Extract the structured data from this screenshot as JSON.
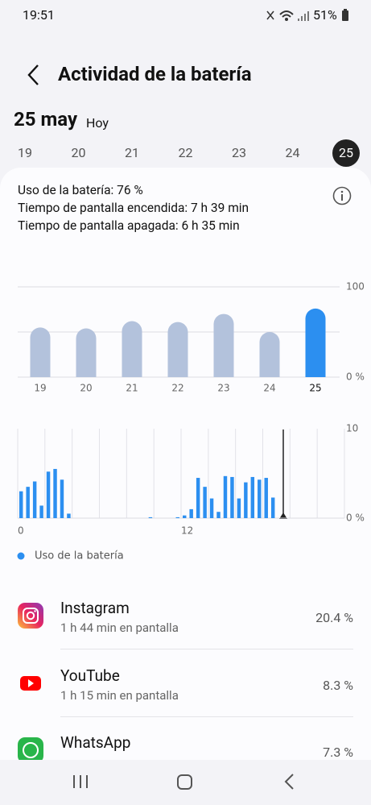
{
  "status": {
    "time": "19:51",
    "battery": "51%"
  },
  "header": {
    "title": "Actividad de la batería"
  },
  "date": {
    "day": "25 may",
    "relative": "Hoy"
  },
  "days": [
    "19",
    "20",
    "21",
    "22",
    "23",
    "24",
    "25"
  ],
  "summary": [
    "Uso de la batería: 76 %",
    "Tiempo de pantalla encendida: 7 h 39 min",
    "Tiempo de pantalla apagada: 6 h 35 min"
  ],
  "chart_data": [
    {
      "type": "bar",
      "categories": [
        "19",
        "20",
        "21",
        "22",
        "23",
        "24",
        "25"
      ],
      "values": [
        55,
        54,
        62,
        61,
        70,
        50,
        76
      ],
      "colors": [
        "#b3c2dc",
        "#b3c2dc",
        "#b3c2dc",
        "#b3c2dc",
        "#b3c2dc",
        "#b3c2dc",
        "#2c8ff0"
      ],
      "ylim": [
        0,
        100
      ],
      "yticks": [
        {
          "value": 0,
          "label": "0 %"
        },
        100
      ],
      "ygrid": [
        0,
        50,
        100
      ]
    },
    {
      "type": "histogram",
      "xlim": [
        0,
        24
      ],
      "xticks": [
        0,
        12
      ],
      "xgrid": [
        0,
        2,
        4,
        6,
        8,
        10,
        12,
        14,
        16,
        18,
        20,
        22,
        24
      ],
      "ylim": [
        0,
        10
      ],
      "yticks": [
        {
          "value": 0,
          "label": "0 %"
        },
        10
      ],
      "color": "#2c8ff0",
      "legend": "Uso de la batería",
      "values": [
        3.0,
        3.5,
        4.1,
        1.4,
        5.2,
        5.5,
        4.3,
        0.5,
        0,
        0,
        0,
        0,
        0,
        0,
        0,
        0,
        0,
        0,
        0,
        0.1,
        0,
        0,
        0,
        0.1,
        0.3,
        1.0,
        4.5,
        3.5,
        2.2,
        0.7,
        4.7,
        4.6,
        2.2,
        4.0,
        4.6,
        4.3,
        4.5,
        2.3,
        0,
        0,
        0,
        0,
        0,
        0,
        0,
        0,
        0,
        0
      ]
    }
  ],
  "apps": [
    {
      "name": "Instagram",
      "detail": "1 h 44 min en pantalla",
      "percent": "20.4 %"
    },
    {
      "name": "YouTube",
      "detail": "1 h 15 min en pantalla",
      "percent": "8.3 %"
    },
    {
      "name": "WhatsApp",
      "percent": "7.3 %"
    }
  ]
}
